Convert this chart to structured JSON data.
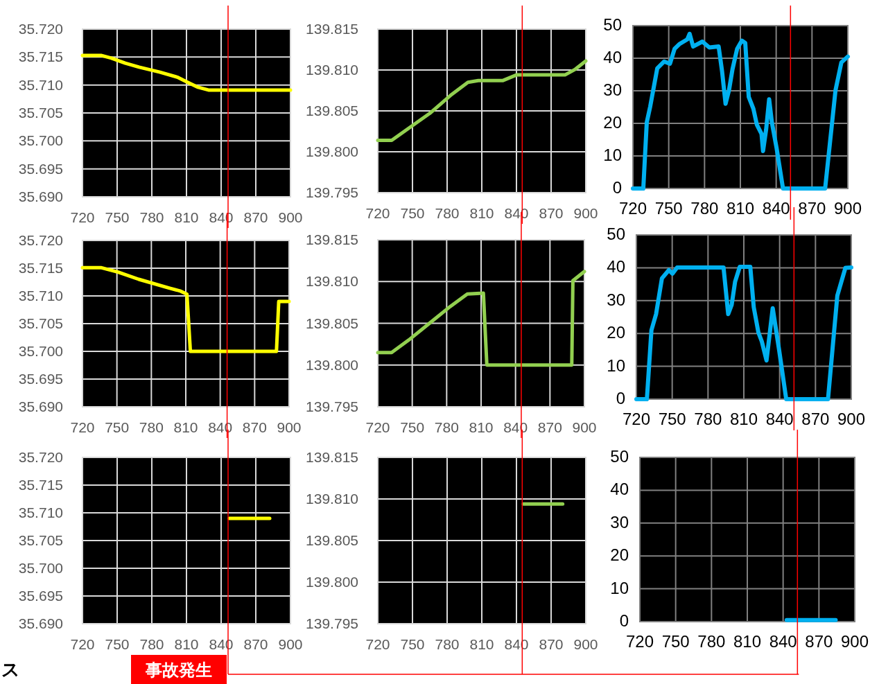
{
  "chart_data": [
    {
      "type": "line",
      "xlim": [
        720,
        900
      ],
      "xticks": [
        720,
        750,
        780,
        810,
        840,
        870,
        900
      ],
      "ylim": [
        35.69,
        35.72
      ],
      "yticks": [
        {
          "value": 35.69,
          "label": "35.690"
        },
        35.695,
        {
          "value": 35.7,
          "label": "35.700"
        },
        35.705,
        {
          "value": 35.71,
          "label": "35.710"
        },
        35.715,
        {
          "value": 35.72,
          "label": "35.720"
        }
      ],
      "grid": true,
      "series": [
        {
          "color": "#ffff00",
          "x": [
            720,
            736,
            745,
            757,
            769,
            787,
            802,
            811,
            820,
            829,
            847,
            900
          ],
          "values": [
            35.7153,
            35.7153,
            35.7148,
            35.7139,
            35.7132,
            35.7123,
            35.7114,
            35.7105,
            35.7096,
            35.7091,
            35.7091,
            35.7091
          ]
        }
      ],
      "ref_lines": [
        {
          "axis": "x",
          "value": 846,
          "color": "#ff0000"
        }
      ]
    },
    {
      "type": "line",
      "xlim": [
        720,
        900
      ],
      "xticks": [
        720,
        750,
        780,
        810,
        840,
        870,
        900
      ],
      "ylim": [
        139.795,
        139.815
      ],
      "yticks": [
        139.795,
        {
          "value": 139.8,
          "label": "139.800"
        },
        139.805,
        {
          "value": 139.81,
          "label": "139.810"
        },
        139.815
      ],
      "grid": true,
      "series": [
        {
          "color": "#92d050",
          "x": [
            720,
            732,
            747,
            765,
            783,
            798,
            807,
            828,
            840,
            882,
            891,
            900
          ],
          "values": [
            139.8014,
            139.8014,
            139.8029,
            139.8047,
            139.8069,
            139.8085,
            139.8087,
            139.8087,
            139.8094,
            139.8094,
            139.8101,
            139.8111
          ]
        }
      ],
      "ref_lines": [
        {
          "axis": "x",
          "value": 845,
          "color": "#ff0000"
        }
      ]
    },
    {
      "type": "line",
      "xlim": [
        720,
        900
      ],
      "xticks": [
        720,
        750,
        780,
        810,
        840,
        870,
        900
      ],
      "ylim": [
        0,
        50
      ],
      "yticks": [
        0,
        10,
        20,
        30,
        40,
        50
      ],
      "grid": true,
      "series": [
        {
          "color": "#00b0f0",
          "x": [
            720,
            728.7,
            731.6,
            734.5,
            740.4,
            746.2,
            751,
            754.9,
            758.8,
            765.6,
            767.5,
            770.4,
            778.2,
            784,
            791.8,
            794.7,
            797.6,
            800.5,
            803.4,
            807.3,
            811.2,
            814.1,
            817,
            820.9,
            823.8,
            827.7,
            829,
            831.6,
            834.1,
            836.4,
            840.3,
            845.7,
            881,
            889.7,
            894.6,
            900
          ],
          "values": [
            0,
            0,
            20.3,
            25.2,
            36.9,
            39,
            38.3,
            42.9,
            44.3,
            45.8,
            47.5,
            43.6,
            45.1,
            43.3,
            43.6,
            35.9,
            26,
            30.2,
            36.6,
            42.9,
            45.4,
            44.7,
            28.1,
            24.5,
            19.6,
            16.8,
            11.5,
            18.2,
            27.4,
            20.3,
            12.5,
            0,
            0,
            30.2,
            38.7,
            40.5
          ]
        }
      ],
      "ref_lines": [
        {
          "axis": "x",
          "value": 852,
          "color": "#ff0000"
        }
      ]
    },
    {
      "type": "line",
      "xlim": [
        720,
        900
      ],
      "xticks": [
        720,
        750,
        780,
        810,
        840,
        870,
        900
      ],
      "ylim": [
        35.69,
        35.72
      ],
      "yticks": [
        {
          "value": 35.69,
          "label": "35.690"
        },
        35.695,
        {
          "value": 35.7,
          "label": "35.700"
        },
        35.705,
        {
          "value": 35.71,
          "label": "35.710"
        },
        35.715,
        {
          "value": 35.72,
          "label": "35.720"
        }
      ],
      "grid": true,
      "series": [
        {
          "color": "#ffff00",
          "x": [
            720,
            736,
            751,
            769,
            796,
            805,
            811,
            814,
            889,
            891,
            900
          ],
          "values": [
            35.7151,
            35.7151,
            35.7143,
            35.713,
            35.7114,
            35.7109,
            35.7103,
            35.7,
            35.7,
            35.709,
            35.709
          ]
        }
      ],
      "ref_lines": [
        {
          "axis": "x",
          "value": 846,
          "color": "#ff0000"
        }
      ]
    },
    {
      "type": "line",
      "xlim": [
        720,
        900
      ],
      "xticks": [
        720,
        750,
        780,
        810,
        840,
        870,
        900
      ],
      "ylim": [
        139.795,
        139.815
      ],
      "yticks": [
        139.795,
        {
          "value": 139.8,
          "label": "139.800"
        },
        139.805,
        {
          "value": 139.81,
          "label": "139.810"
        },
        139.815
      ],
      "grid": true,
      "series": [
        {
          "color": "#92d050",
          "x": [
            720,
            732,
            747,
            765,
            783,
            798,
            812,
            815,
            889,
            890,
            900
          ],
          "values": [
            139.8015,
            139.8015,
            139.803,
            139.805,
            139.807,
            139.8085,
            139.8086,
            139.8,
            139.8,
            139.8101,
            139.8112
          ]
        }
      ],
      "ref_lines": [
        {
          "axis": "x",
          "value": 845,
          "color": "#ff0000"
        }
      ]
    },
    {
      "type": "line",
      "xlim": [
        720,
        900
      ],
      "xticks": [
        720,
        750,
        780,
        810,
        840,
        870,
        900
      ],
      "ylim": [
        0,
        50
      ],
      "yticks": [
        0,
        10,
        20,
        30,
        40,
        50
      ],
      "grid": true,
      "series": [
        {
          "color": "#00b0f0",
          "x": [
            720,
            728.8,
            732.6,
            736.5,
            741.4,
            747.2,
            750.2,
            754.1,
            793,
            796.9,
            799.8,
            802.7,
            806.6,
            815.4,
            818.3,
            822.2,
            825.1,
            829,
            834.2,
            839.7,
            845.5,
            880.5,
            888.3,
            895.1,
            900
          ],
          "values": [
            0,
            0,
            21,
            25.9,
            36.8,
            39.3,
            38.2,
            40.1,
            40.1,
            25.9,
            28.7,
            35.8,
            40.3,
            40.3,
            28,
            20.3,
            17.5,
            11.8,
            27.7,
            14.6,
            0,
            0,
            31.5,
            40,
            40.1
          ]
        }
      ],
      "ref_lines": [
        {
          "axis": "x",
          "value": 852,
          "color": "#ff0000"
        }
      ]
    },
    {
      "type": "line",
      "xlim": [
        720,
        900
      ],
      "xticks": [
        720,
        750,
        780,
        810,
        840,
        870,
        900
      ],
      "ylim": [
        35.69,
        35.72
      ],
      "yticks": [
        {
          "value": 35.69,
          "label": "35.690"
        },
        35.695,
        {
          "value": 35.7,
          "label": "35.700"
        },
        35.705,
        {
          "value": 35.71,
          "label": "35.710"
        },
        35.715,
        {
          "value": 35.72,
          "label": "35.720"
        }
      ],
      "grid": true,
      "series": [
        {
          "color": "#ffff00",
          "x": [
            847,
            882
          ],
          "values": [
            35.709,
            35.709
          ]
        }
      ],
      "ref_lines": [
        {
          "axis": "x",
          "value": 846,
          "color": "#ff0000",
          "label": "事故発生"
        }
      ],
      "annotations": [
        "ス"
      ]
    },
    {
      "type": "line",
      "xlim": [
        720,
        900
      ],
      "xticks": [
        720,
        750,
        780,
        810,
        840,
        870,
        900
      ],
      "ylim": [
        139.795,
        139.815
      ],
      "yticks": [
        139.795,
        {
          "value": 139.8,
          "label": "139.800"
        },
        139.805,
        {
          "value": 139.81,
          "label": "139.810"
        },
        139.815
      ],
      "grid": true,
      "series": [
        {
          "color": "#92d050",
          "x": [
            846,
            880
          ],
          "values": [
            139.8094,
            139.8094
          ]
        }
      ],
      "ref_lines": [
        {
          "axis": "x",
          "value": 845,
          "color": "#ff0000"
        }
      ]
    },
    {
      "type": "line",
      "xlim": [
        720,
        900
      ],
      "xticks": [
        720,
        750,
        780,
        810,
        840,
        870,
        900
      ],
      "ylim": [
        0,
        50
      ],
      "yticks": [
        0,
        10,
        20,
        30,
        40,
        50
      ],
      "grid": true,
      "series": [
        {
          "color": "#00b0f0",
          "x": [
            843,
            884
          ],
          "values": [
            0.5,
            0.5
          ]
        }
      ],
      "ref_lines": [
        {
          "axis": "x",
          "value": 852,
          "color": "#ff0000"
        }
      ]
    }
  ]
}
